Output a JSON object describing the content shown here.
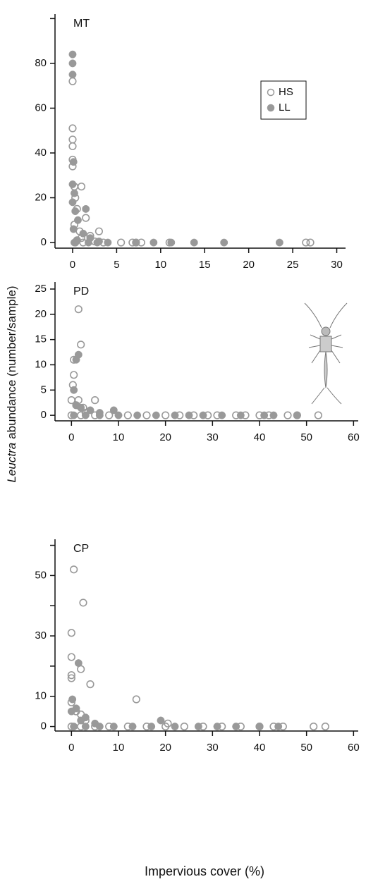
{
  "xlabel": "Impervious cover (%)",
  "ylabel_parts": [
    "Leuctra",
    "abundance (number/sample)"
  ],
  "chart_data": [
    {
      "type": "scatter",
      "title": "MT",
      "legend": "upper right",
      "xlim": [
        -2,
        31
      ],
      "xticks": [
        0,
        5,
        10,
        15,
        20,
        25,
        30
      ],
      "ylim": [
        -2.5,
        102
      ],
      "yticks": [
        0,
        20,
        40,
        60,
        80
      ],
      "yminor": [
        100
      ],
      "series": [
        {
          "name": "HS",
          "color": "#999999",
          "marker": "open",
          "x": [
            0,
            0,
            0,
            0,
            0,
            0,
            0.2,
            1,
            0.3,
            0.5,
            1.5,
            0.2,
            0.8,
            3,
            2,
            1,
            0.5,
            2.5,
            5.5,
            6.8,
            7.2,
            7.8,
            11,
            26.5,
            27,
            0.3,
            1.2,
            3.5
          ],
          "values": [
            72,
            51,
            46,
            43,
            37,
            34,
            25,
            25,
            20,
            15,
            11,
            8,
            5,
            5,
            3,
            2,
            1,
            0.5,
            0,
            0,
            0,
            0,
            0,
            0,
            0,
            0,
            0,
            0
          ]
        },
        {
          "name": "LL",
          "color": "#999999",
          "marker": "filled",
          "x": [
            0,
            0,
            0,
            0.1,
            0,
            0.2,
            0,
            0.3,
            1.5,
            0.6,
            0.1,
            1.2,
            2,
            0.5,
            3,
            4,
            7.2,
            9.2,
            11.2,
            13.8,
            17.2,
            23.5,
            0.2,
            1.8,
            2.8
          ],
          "values": [
            84,
            80,
            75,
            36,
            26,
            22,
            18,
            14,
            15,
            10,
            6,
            4,
            2,
            1,
            0.5,
            0,
            0,
            0,
            0,
            0,
            0,
            0,
            0,
            0,
            0
          ]
        }
      ]
    },
    {
      "type": "scatter",
      "title": "PD",
      "xlim": [
        -3.5,
        61
      ],
      "xticks": [
        0,
        10,
        20,
        30,
        40,
        50,
        60
      ],
      "ylim": [
        -1.1,
        26.4
      ],
      "yticks": [
        0,
        5,
        10,
        15,
        20,
        25
      ],
      "series": [
        {
          "color": "#999999",
          "marker": "open",
          "x": [
            1.5,
            2,
            0.5,
            0.5,
            0.3,
            0,
            1.5,
            5,
            1,
            2.5,
            3,
            0,
            2,
            5,
            8,
            12,
            16,
            20,
            23,
            26,
            29,
            31,
            35,
            37,
            40,
            42,
            46,
            48,
            52.5
          ],
          "values": [
            21,
            14,
            11,
            8,
            6,
            3,
            3,
            3,
            2,
            1.5,
            0.5,
            0,
            0,
            0,
            0,
            0,
            0,
            0,
            0,
            0,
            0,
            0,
            0,
            0,
            0,
            0,
            0,
            0,
            0
          ]
        },
        {
          "color": "#999999",
          "marker": "filled",
          "x": [
            1.5,
            1,
            0.5,
            1,
            2,
            4,
            6,
            9,
            0.5,
            3,
            6,
            10,
            14,
            18,
            22,
            25,
            28,
            32,
            36,
            41,
            43,
            48
          ],
          "values": [
            12,
            11,
            5,
            2,
            1.5,
            1,
            0.5,
            1,
            0,
            0,
            0,
            0,
            0,
            0,
            0,
            0,
            0,
            0,
            0,
            0,
            0,
            0
          ]
        }
      ]
    },
    {
      "type": "scatter",
      "title": "CP",
      "xlim": [
        -3.5,
        61
      ],
      "xticks": [
        0,
        10,
        20,
        30,
        40,
        50,
        60
      ],
      "ylim": [
        -1.5,
        62
      ],
      "yticks": [
        0,
        10,
        30,
        50
      ],
      "yminor": [
        20,
        40,
        60
      ],
      "series": [
        {
          "color": "#999999",
          "marker": "open",
          "x": [
            0.5,
            2.5,
            0,
            0,
            2,
            4,
            0,
            0,
            13.8,
            0,
            1,
            2,
            3,
            0,
            2,
            5,
            8,
            12,
            16,
            20.5,
            20,
            24,
            28,
            32,
            36,
            40,
            43,
            45,
            51.5,
            54
          ],
          "values": [
            52,
            41,
            31,
            23,
            19,
            14,
            17,
            16,
            9,
            8,
            5,
            4,
            2,
            0,
            0,
            0,
            0,
            0,
            0,
            1,
            0,
            0,
            0,
            0,
            0,
            0,
            0,
            0,
            0,
            0
          ]
        },
        {
          "color": "#999999",
          "marker": "filled",
          "x": [
            1.5,
            0.2,
            0,
            1,
            3,
            2,
            5,
            19,
            0.5,
            3,
            6,
            9,
            13,
            17,
            22,
            27,
            31,
            35,
            40,
            44
          ],
          "values": [
            21,
            9,
            5,
            6,
            3,
            2,
            1,
            2,
            0,
            0,
            0,
            0,
            0,
            0,
            0,
            0,
            0,
            0,
            0,
            0
          ]
        }
      ]
    }
  ]
}
